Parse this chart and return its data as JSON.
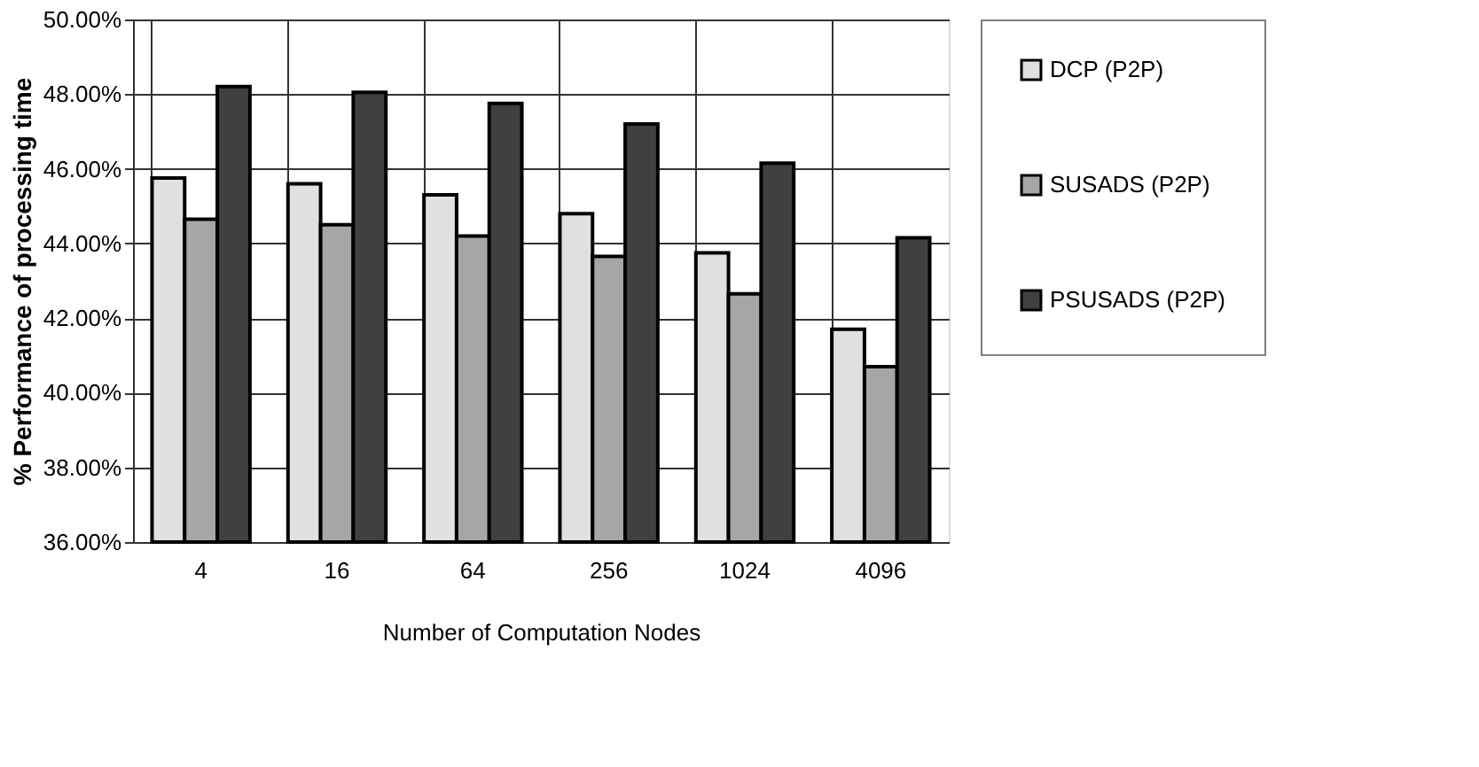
{
  "chart_data": {
    "type": "bar",
    "xlabel": "Number of Computation Nodes",
    "ylabel": "% Performance of processing time",
    "categories": [
      "4",
      "16",
      "64",
      "256",
      "1024",
      "4096"
    ],
    "series": [
      {
        "name": "DCP (P2P)",
        "color": "#e0e0e0",
        "values": [
          45.75,
          45.6,
          45.3,
          44.8,
          43.75,
          41.7
        ]
      },
      {
        "name": "SUSADS (P2P)",
        "color": "#a6a6a6",
        "values": [
          44.65,
          44.5,
          44.2,
          43.65,
          42.65,
          40.7
        ]
      },
      {
        "name": "PSUSADS (P2P)",
        "color": "#404040",
        "values": [
          48.2,
          48.05,
          47.75,
          47.2,
          46.15,
          44.15
        ]
      }
    ],
    "ylim": [
      36,
      50
    ],
    "yticks": [
      {
        "value": 36,
        "label": "36.00%"
      },
      {
        "value": 38,
        "label": "38.00%"
      },
      {
        "value": 40,
        "label": "40.00%"
      },
      {
        "value": 42,
        "label": "42.00%"
      },
      {
        "value": 44,
        "label": "44.00%"
      },
      {
        "value": 46,
        "label": "46.00%"
      },
      {
        "value": 48,
        "label": "48.00%"
      },
      {
        "value": 50,
        "label": "50.00%"
      }
    ],
    "grid": true,
    "legend": "right"
  }
}
